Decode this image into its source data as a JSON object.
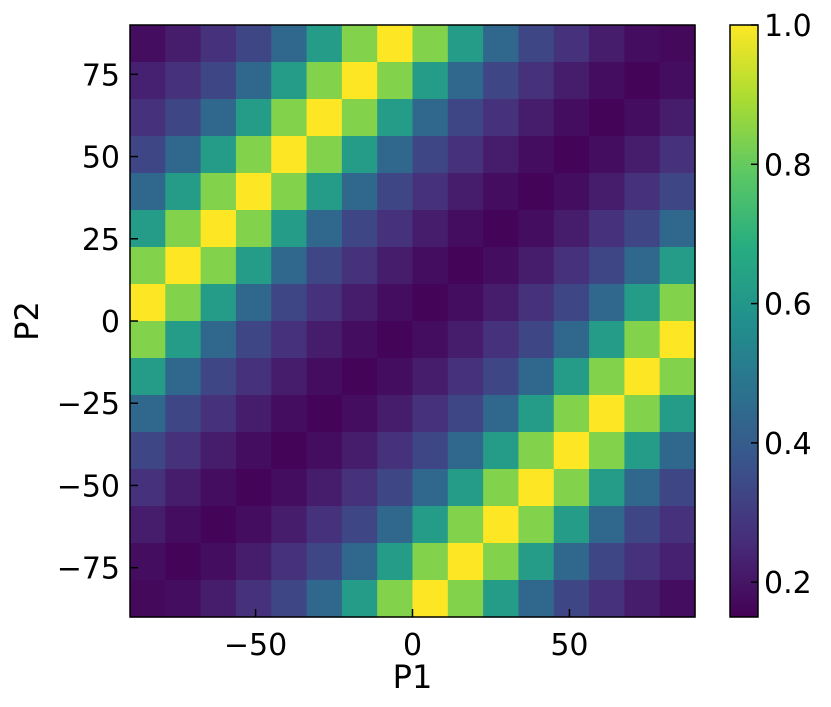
{
  "chart_data": {
    "type": "heatmap",
    "xlabel": "P1",
    "ylabel": "P2",
    "xlim": [
      -90,
      90
    ],
    "ylim": [
      -90,
      90
    ],
    "grid": false,
    "x_ticks": [
      -50,
      0,
      50
    ],
    "x_tick_labels": [
      "−50",
      "0",
      "50"
    ],
    "y_ticks": [
      -75,
      -50,
      -25,
      0,
      25,
      50,
      75
    ],
    "y_tick_labels": [
      "−75",
      "−50",
      "−25",
      "0",
      "25",
      "50",
      "75"
    ],
    "colormap": "viridis",
    "colorbar": {
      "range": [
        0.15,
        1.0
      ],
      "ticks": [
        0.2,
        0.4,
        0.6,
        0.8,
        1.0
      ],
      "tick_labels": [
        "0.2",
        "0.4",
        "0.6",
        "0.8",
        "1.0"
      ]
    },
    "x": [
      -84.375,
      -73.125,
      -61.875,
      -50.625,
      -39.375,
      -28.125,
      -16.875,
      -5.625,
      5.625,
      16.875,
      28.125,
      39.375,
      50.625,
      61.875,
      73.125,
      84.375
    ],
    "y": [
      84.375,
      73.125,
      61.875,
      50.625,
      39.375,
      28.125,
      16.875,
      5.625,
      -5.625,
      -16.875,
      -28.125,
      -39.375,
      -50.625,
      -61.875,
      -73.125,
      -84.375
    ],
    "values": [
      [
        0.18,
        0.22,
        0.27,
        0.33,
        0.44,
        0.62,
        0.84,
        1.0,
        0.84,
        0.62,
        0.44,
        0.33,
        0.27,
        0.22,
        0.18,
        0.17
      ],
      [
        0.23,
        0.27,
        0.33,
        0.44,
        0.62,
        0.84,
        1.0,
        0.84,
        0.62,
        0.44,
        0.33,
        0.27,
        0.22,
        0.18,
        0.16,
        0.18
      ],
      [
        0.27,
        0.33,
        0.44,
        0.62,
        0.84,
        1.0,
        0.84,
        0.62,
        0.44,
        0.33,
        0.27,
        0.22,
        0.18,
        0.16,
        0.18,
        0.22
      ],
      [
        0.33,
        0.44,
        0.62,
        0.84,
        1.0,
        0.84,
        0.62,
        0.44,
        0.33,
        0.27,
        0.22,
        0.18,
        0.16,
        0.18,
        0.22,
        0.27
      ],
      [
        0.44,
        0.62,
        0.84,
        1.0,
        0.84,
        0.62,
        0.44,
        0.33,
        0.27,
        0.22,
        0.18,
        0.16,
        0.18,
        0.22,
        0.27,
        0.33
      ],
      [
        0.62,
        0.84,
        1.0,
        0.84,
        0.62,
        0.44,
        0.33,
        0.27,
        0.22,
        0.18,
        0.16,
        0.18,
        0.22,
        0.27,
        0.33,
        0.44
      ],
      [
        0.84,
        1.0,
        0.84,
        0.62,
        0.44,
        0.33,
        0.27,
        0.22,
        0.18,
        0.16,
        0.18,
        0.22,
        0.27,
        0.33,
        0.44,
        0.62
      ],
      [
        1.0,
        0.84,
        0.62,
        0.44,
        0.33,
        0.27,
        0.22,
        0.18,
        0.16,
        0.18,
        0.22,
        0.27,
        0.33,
        0.44,
        0.62,
        0.84
      ],
      [
        0.84,
        0.62,
        0.44,
        0.33,
        0.27,
        0.22,
        0.18,
        0.16,
        0.18,
        0.22,
        0.27,
        0.33,
        0.44,
        0.62,
        0.84,
        1.0
      ],
      [
        0.62,
        0.44,
        0.33,
        0.27,
        0.22,
        0.18,
        0.16,
        0.18,
        0.22,
        0.27,
        0.33,
        0.44,
        0.62,
        0.84,
        1.0,
        0.84
      ],
      [
        0.44,
        0.33,
        0.27,
        0.22,
        0.18,
        0.16,
        0.18,
        0.22,
        0.27,
        0.33,
        0.44,
        0.62,
        0.84,
        1.0,
        0.84,
        0.62
      ],
      [
        0.33,
        0.27,
        0.22,
        0.18,
        0.16,
        0.18,
        0.22,
        0.27,
        0.33,
        0.44,
        0.62,
        0.84,
        1.0,
        0.84,
        0.62,
        0.44
      ],
      [
        0.27,
        0.22,
        0.18,
        0.16,
        0.18,
        0.22,
        0.27,
        0.33,
        0.44,
        0.62,
        0.84,
        1.0,
        0.84,
        0.62,
        0.44,
        0.33
      ],
      [
        0.22,
        0.18,
        0.16,
        0.18,
        0.22,
        0.27,
        0.33,
        0.44,
        0.62,
        0.84,
        1.0,
        0.84,
        0.62,
        0.44,
        0.33,
        0.27
      ],
      [
        0.18,
        0.16,
        0.18,
        0.22,
        0.27,
        0.33,
        0.44,
        0.62,
        0.84,
        1.0,
        0.84,
        0.62,
        0.44,
        0.33,
        0.27,
        0.23
      ],
      [
        0.17,
        0.18,
        0.22,
        0.27,
        0.33,
        0.44,
        0.62,
        0.84,
        1.0,
        0.84,
        0.62,
        0.44,
        0.33,
        0.27,
        0.22,
        0.18
      ]
    ]
  }
}
